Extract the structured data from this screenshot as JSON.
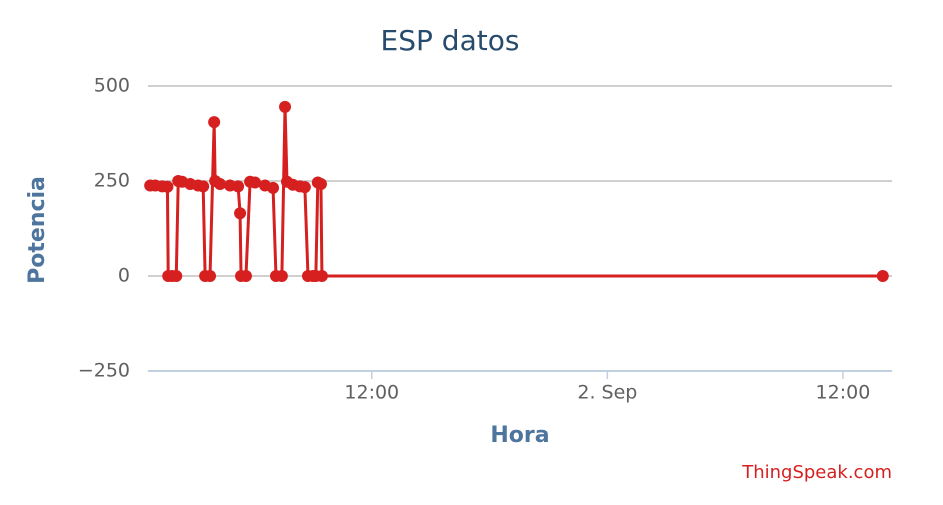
{
  "chart_data": {
    "type": "line",
    "title": "ESP datos",
    "x_label": "Hora",
    "y_label": "Potencia",
    "credit": "ThingSpeak.com",
    "x": [
      0.71,
      0.97,
      1.32,
      1.59,
      1.63,
      1.83,
      2.04,
      2.14,
      2.34,
      2.75,
      3.15,
      3.41,
      3.51,
      3.76,
      3.97,
      4.02,
      4.27,
      4.78,
      5.19,
      5.29,
      5.34,
      5.59,
      5.8,
      6.05,
      6.56,
      6.97,
      7.12,
      7.42,
      7.58,
      7.68,
      7.98,
      8.34,
      8.59,
      8.75,
      9.0,
      9.15,
      9.25,
      9.41,
      9.46,
      38.03
    ],
    "values": [
      238,
      238,
      236,
      235,
      0,
      0,
      0,
      250,
      248,
      242,
      238,
      236,
      0,
      0,
      405,
      250,
      242,
      238,
      236,
      165,
      0,
      0,
      248,
      246,
      238,
      232,
      0,
      0,
      445,
      248,
      240,
      236,
      234,
      0,
      0,
      0,
      246,
      242,
      0,
      0
    ],
    "color": "#d62020",
    "xlim": [
      0.6,
      38.5
    ],
    "xticks": [
      {
        "value": 12,
        "label": "12:00"
      },
      {
        "value": 24,
        "label": "2. Sep"
      },
      {
        "value": 36,
        "label": "12:00"
      }
    ],
    "ylim": [
      -250,
      500
    ],
    "yticks": [
      500,
      250,
      0,
      {
        "value": -250,
        "label": "−250"
      }
    ],
    "grid": true
  }
}
